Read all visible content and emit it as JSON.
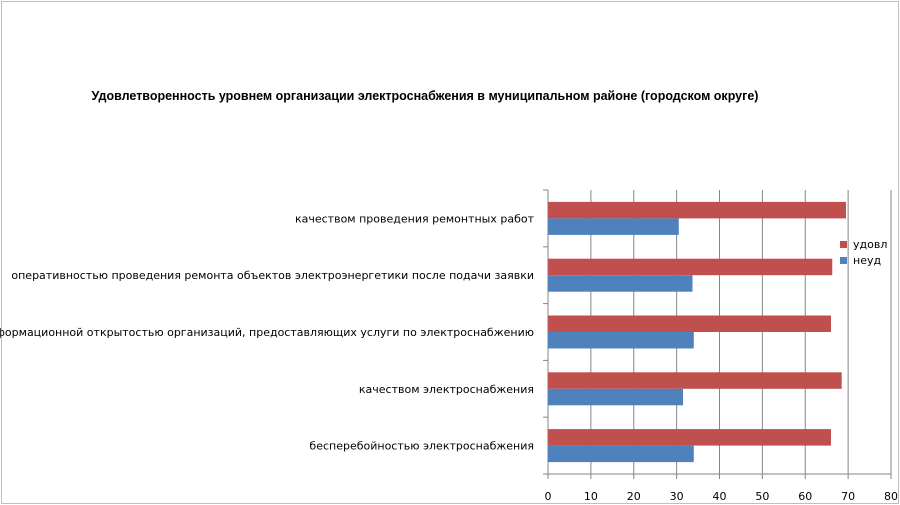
{
  "colors": {
    "udovl": "#c0504d",
    "neud": "#4f81bd",
    "grid": "#868686"
  },
  "chart_data": {
    "type": "bar",
    "orientation": "horizontal",
    "title": "Удовлетворенность уровнем организации электроснабжения в муниципальном районе (городском округе)",
    "categories": [
      "качеством проведения ремонтных работ",
      "оперативностью проведения ремонта объектов электроэнергетики после подачи заявки",
      "информационной открытостью организаций, предоставляющих услуги по электроснабжению",
      "качеством электроснабжения",
      "бесперебойностью электроснабжения"
    ],
    "series": [
      {
        "name": "удовл",
        "values": [
          69.5,
          66.3,
          66.0,
          68.5,
          66.0
        ]
      },
      {
        "name": "неуд",
        "values": [
          30.5,
          33.7,
          34.0,
          31.5,
          34.0
        ]
      }
    ],
    "xlim": [
      0,
      80
    ],
    "xticks": [
      "0",
      "10",
      "20",
      "30",
      "40",
      "50",
      "60",
      "70",
      "80"
    ],
    "grid": true,
    "legend": "right"
  }
}
